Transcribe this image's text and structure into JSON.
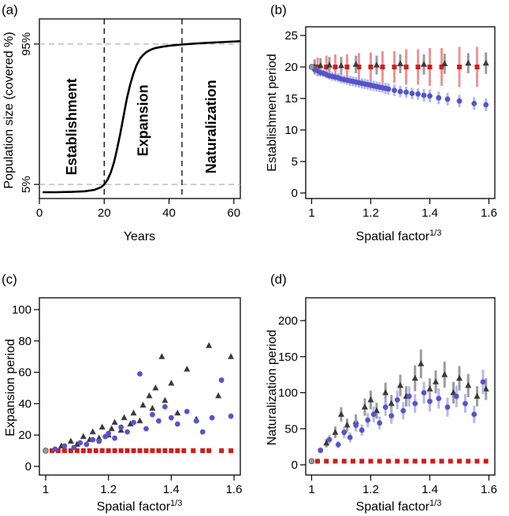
{
  "colors": {
    "red": "#cc1f1f",
    "red_light": "#f08080",
    "blue": "#5555c8",
    "blue_light": "#a9a9ee",
    "dark": "#3a3a3a",
    "dark_light": "#8a8a8a",
    "guide": "#b0b0b0",
    "phase_text": "#555555"
  },
  "chart_data": [
    {
      "panel": "(a)",
      "type": "line",
      "xlabel": "Years",
      "ylabel": "Population size (covered %)",
      "xlim": [
        0,
        62
      ],
      "ylim": [
        0,
        100
      ],
      "xticks": [
        0,
        20,
        40,
        60
      ],
      "yticks": [
        {
          "value": 5,
          "label": "5%"
        },
        {
          "value": 95,
          "label": "95%"
        }
      ],
      "curve": {
        "x": [
          1,
          5,
          10,
          14,
          17,
          19,
          20,
          21,
          22,
          23,
          24,
          25,
          26,
          27,
          28,
          29,
          30,
          31,
          32,
          33,
          34,
          35,
          36,
          38,
          40,
          44,
          48,
          52,
          56,
          62
        ],
        "y": [
          0,
          0,
          0.2,
          0.6,
          1.5,
          3.2,
          5,
          8,
          12.5,
          19,
          28,
          38,
          49,
          60,
          69,
          76,
          81.5,
          85.5,
          88,
          89.8,
          91,
          91.9,
          92.5,
          93.3,
          93.9,
          94.7,
          95.3,
          95.8,
          96.2,
          96.8
        ]
      },
      "vlines": [
        20,
        44
      ],
      "hlines": [
        5,
        95
      ],
      "phase_labels": [
        {
          "text": "Establishment",
          "x": 10,
          "y": 42
        },
        {
          "text": "Expansion",
          "x": 32,
          "y": 46
        },
        {
          "text": "Naturalization",
          "x": 53,
          "y": 42
        }
      ]
    },
    {
      "panel": "(b)",
      "type": "scatter",
      "xlabel": "Spatial factor",
      "xlabel_sup": "1/3",
      "ylabel": "Establishment period",
      "xlim": [
        0.98,
        1.62
      ],
      "ylim": [
        0,
        25
      ],
      "xticks": [
        1,
        1.2,
        1.4,
        1.6
      ],
      "yticks": [
        0,
        5,
        10,
        15,
        20,
        25
      ],
      "origin_point": {
        "x": 1.0,
        "y": 20
      },
      "series": [
        {
          "name": "",
          "color": "red",
          "marker": "square",
          "x": [
            1.02,
            1.05,
            1.08,
            1.12,
            1.16,
            1.2,
            1.24,
            1.28,
            1.32,
            1.36,
            1.4,
            1.44,
            1.5,
            1.56
          ],
          "y": [
            20,
            20,
            20,
            20,
            20,
            20,
            20,
            20,
            20,
            20,
            20,
            20,
            20,
            20
          ],
          "err": [
            1.5,
            1.8,
            2,
            2,
            2.2,
            2.3,
            2.5,
            2.5,
            2.8,
            2.8,
            3,
            3,
            3.2,
            3.2
          ]
        },
        {
          "name": "",
          "color": "dark",
          "marker": "triangle",
          "x": [
            1.01,
            1.03,
            1.06,
            1.1,
            1.15,
            1.22,
            1.3,
            1.38,
            1.45,
            1.53,
            1.59
          ],
          "y": [
            20,
            20.2,
            20.3,
            20.2,
            20.4,
            20.3,
            20.5,
            20.4,
            20.5,
            20.6,
            20.6
          ],
          "err": [
            1.2,
            1.2,
            1.3,
            1.4,
            1.4,
            1.5,
            1.5,
            1.6,
            1.6,
            1.6,
            1.7
          ]
        },
        {
          "name": "",
          "color": "blue",
          "marker": "circle",
          "x": [
            1.01,
            1.02,
            1.03,
            1.04,
            1.05,
            1.06,
            1.07,
            1.08,
            1.09,
            1.1,
            1.11,
            1.12,
            1.13,
            1.14,
            1.15,
            1.16,
            1.17,
            1.18,
            1.19,
            1.2,
            1.21,
            1.22,
            1.23,
            1.24,
            1.25,
            1.26,
            1.28,
            1.3,
            1.32,
            1.34,
            1.36,
            1.38,
            1.4,
            1.43,
            1.46,
            1.5,
            1.55,
            1.59
          ],
          "y": [
            19.6,
            19.4,
            19.1,
            19.0,
            18.8,
            18.6,
            18.5,
            18.4,
            18.3,
            18.1,
            18.0,
            17.9,
            17.8,
            17.7,
            17.6,
            17.5,
            17.4,
            17.3,
            17.2,
            17.1,
            17.0,
            16.9,
            16.8,
            16.7,
            16.6,
            16.5,
            16.3,
            16.1,
            16.0,
            15.8,
            15.7,
            15.5,
            15.4,
            15.1,
            14.9,
            14.6,
            14.2,
            14.0
          ],
          "err": [
            0.5,
            0.5,
            0.6,
            0.6,
            0.6,
            0.6,
            0.7,
            0.7,
            0.7,
            0.7,
            0.7,
            0.7,
            0.8,
            0.8,
            0.8,
            0.8,
            0.8,
            0.8,
            0.8,
            0.8,
            0.8,
            0.8,
            0.8,
            0.8,
            0.9,
            0.9,
            0.9,
            0.9,
            0.9,
            0.9,
            0.9,
            1,
            1,
            1,
            1,
            1,
            1,
            1
          ]
        }
      ]
    },
    {
      "panel": "(c)",
      "type": "scatter",
      "xlabel": "Spatial factor",
      "xlabel_sup": "1/3",
      "ylabel": "Expansion period",
      "xlim": [
        0.98,
        1.62
      ],
      "ylim": [
        0,
        100
      ],
      "xticks": [
        1,
        1.2,
        1.4,
        1.6
      ],
      "yticks": [
        0,
        20,
        40,
        60,
        80,
        100
      ],
      "origin_point": {
        "x": 1.0,
        "y": 10
      },
      "series": [
        {
          "name": "",
          "color": "red",
          "marker": "square",
          "x": [
            1.02,
            1.04,
            1.06,
            1.08,
            1.1,
            1.12,
            1.14,
            1.16,
            1.18,
            1.2,
            1.22,
            1.24,
            1.26,
            1.28,
            1.3,
            1.32,
            1.34,
            1.36,
            1.38,
            1.4,
            1.42,
            1.44,
            1.47,
            1.5,
            1.52,
            1.56,
            1.59
          ],
          "y": [
            10,
            10,
            10,
            10,
            10,
            10,
            10,
            10,
            10,
            10,
            10,
            10,
            10,
            10,
            10,
            10,
            10,
            10,
            10,
            10,
            10,
            10,
            10,
            10,
            10,
            10,
            10
          ]
        },
        {
          "name": "",
          "color": "dark",
          "marker": "triangle",
          "x": [
            1.05,
            1.08,
            1.1,
            1.12,
            1.14,
            1.15,
            1.17,
            1.18,
            1.2,
            1.21,
            1.22,
            1.24,
            1.25,
            1.27,
            1.28,
            1.3,
            1.31,
            1.33,
            1.34,
            1.35,
            1.37,
            1.38,
            1.4,
            1.42,
            1.45,
            1.48,
            1.52,
            1.55,
            1.59
          ],
          "y": [
            13,
            16,
            14,
            19,
            17,
            22,
            18,
            25,
            20,
            24,
            28,
            23,
            31,
            27,
            34,
            29,
            39,
            45,
            37,
            50,
            70,
            42,
            53,
            34,
            62,
            30,
            77,
            45,
            70
          ]
        },
        {
          "name": "",
          "color": "blue",
          "marker": "circle",
          "x": [
            1.03,
            1.06,
            1.09,
            1.11,
            1.13,
            1.15,
            1.17,
            1.19,
            1.2,
            1.22,
            1.24,
            1.26,
            1.28,
            1.3,
            1.32,
            1.34,
            1.36,
            1.38,
            1.4,
            1.42,
            1.45,
            1.48,
            1.5,
            1.53,
            1.56,
            1.59
          ],
          "y": [
            11,
            13,
            12,
            15,
            14,
            17,
            16,
            19,
            21,
            18,
            25,
            22,
            28,
            59,
            24,
            33,
            29,
            38,
            31,
            27,
            35,
            29,
            22,
            31,
            55,
            32
          ]
        }
      ]
    },
    {
      "panel": "(d)",
      "type": "scatter",
      "xlabel": "Spatial factor",
      "xlabel_sup": "1/3",
      "ylabel": "Naturalization period",
      "xlim": [
        0.98,
        1.62
      ],
      "ylim": [
        0,
        200
      ],
      "xticks": [
        1,
        1.2,
        1.4,
        1.6
      ],
      "yticks": [
        0,
        50,
        100,
        150,
        200
      ],
      "origin_point": {
        "x": 1.0,
        "y": 5
      },
      "series": [
        {
          "name": "",
          "color": "red",
          "marker": "square",
          "x": [
            1.02,
            1.05,
            1.08,
            1.11,
            1.14,
            1.17,
            1.2,
            1.23,
            1.26,
            1.29,
            1.32,
            1.35,
            1.38,
            1.41,
            1.44,
            1.47,
            1.5,
            1.53,
            1.56,
            1.59
          ],
          "y": [
            5,
            5,
            5,
            5,
            5,
            5,
            5,
            5,
            5,
            5,
            5,
            5,
            5,
            5,
            5,
            5,
            5,
            5,
            5,
            5
          ]
        },
        {
          "name": "",
          "color": "dark",
          "marker": "triangle",
          "x": [
            1.05,
            1.08,
            1.1,
            1.12,
            1.15,
            1.18,
            1.2,
            1.22,
            1.25,
            1.27,
            1.3,
            1.32,
            1.35,
            1.37,
            1.4,
            1.42,
            1.45,
            1.48,
            1.5,
            1.53,
            1.56,
            1.59
          ],
          "y": [
            30,
            45,
            70,
            55,
            60,
            80,
            90,
            75,
            100,
            85,
            110,
            95,
            120,
            140,
            105,
            115,
            125,
            100,
            120,
            110,
            95,
            105
          ],
          "err": [
            6,
            8,
            10,
            9,
            10,
            12,
            13,
            11,
            14,
            12,
            15,
            14,
            18,
            20,
            15,
            16,
            18,
            15,
            17,
            16,
            14,
            15
          ]
        },
        {
          "name": "",
          "color": "blue",
          "marker": "circle",
          "x": [
            1.03,
            1.06,
            1.09,
            1.11,
            1.13,
            1.15,
            1.17,
            1.19,
            1.21,
            1.23,
            1.25,
            1.27,
            1.29,
            1.31,
            1.33,
            1.35,
            1.38,
            1.4,
            1.43,
            1.46,
            1.49,
            1.52,
            1.55,
            1.58
          ],
          "y": [
            20,
            35,
            28,
            45,
            38,
            55,
            48,
            62,
            70,
            58,
            80,
            68,
            90,
            75,
            95,
            85,
            100,
            88,
            92,
            80,
            95,
            85,
            70,
            115
          ],
          "err": [
            4,
            6,
            5,
            8,
            7,
            9,
            8,
            10,
            11,
            9,
            12,
            11,
            13,
            12,
            14,
            13,
            15,
            14,
            14,
            13,
            15,
            13,
            12,
            17
          ]
        }
      ]
    }
  ]
}
